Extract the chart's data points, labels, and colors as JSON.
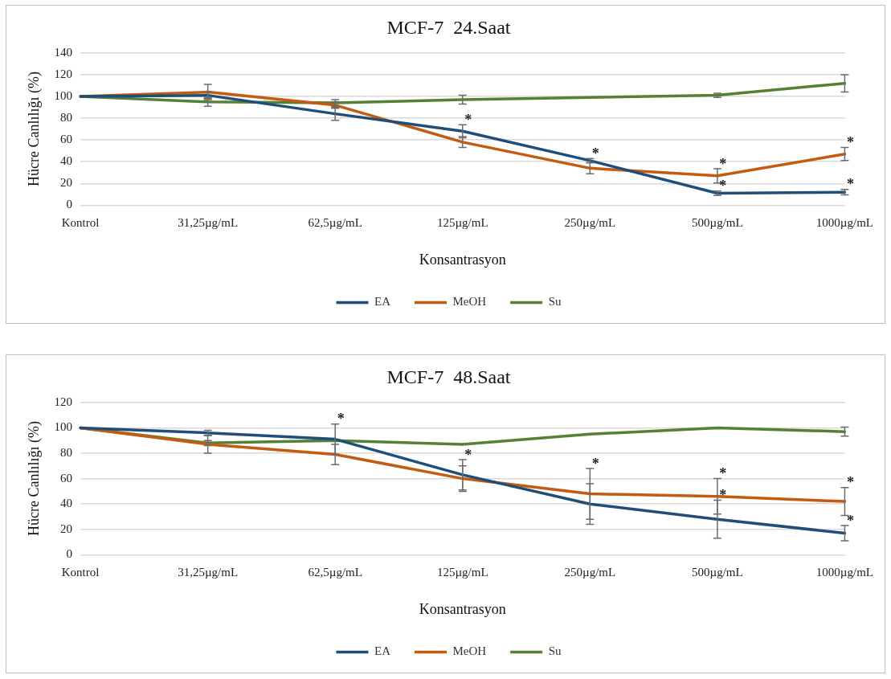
{
  "chart_data": [
    {
      "type": "line",
      "title": "MCF-7  24.Saat",
      "xlabel": "Konsantrasyon",
      "ylabel": "Hücre Canlılığı (%)",
      "categories": [
        "Kontrol",
        "31,25µg/mL",
        "62,5µg/mL",
        "125µg/mL",
        "250µg/mL",
        "500µg/mL",
        "1000µg/mL"
      ],
      "series": [
        {
          "name": "EA",
          "color": "#1f4e79",
          "values": [
            100,
            101,
            84,
            68,
            41,
            11,
            12
          ],
          "errors": [
            null,
            3,
            6,
            6,
            2,
            2,
            2.5
          ]
        },
        {
          "name": "MeOH",
          "color": "#c55a11",
          "values": [
            100,
            104,
            92,
            58,
            34,
            27,
            47
          ],
          "errors": [
            null,
            7,
            3,
            5,
            5,
            6.5,
            6
          ]
        },
        {
          "name": "Su",
          "color": "#548235",
          "values": [
            100,
            95,
            94,
            97,
            99,
            101,
            112
          ],
          "errors": [
            null,
            4,
            3,
            4,
            null,
            2,
            8
          ]
        }
      ],
      "ylim": [
        0,
        140
      ],
      "yticks": [
        0,
        20,
        40,
        60,
        80,
        100,
        120,
        140
      ],
      "grid": "y",
      "legend": "bottom",
      "line_style": "solid",
      "annotations": [
        {
          "text": "*",
          "x": "125µg/mL",
          "y": 68
        },
        {
          "text": "*",
          "x": "250µg/mL",
          "y": 41
        },
        {
          "text": "*",
          "x": "500µg/mL",
          "y": 27
        },
        {
          "text": "*",
          "x": "500µg/mL",
          "y": 11
        },
        {
          "text": "*",
          "x": "1000µg/mL",
          "y": 47
        },
        {
          "text": "*",
          "x": "1000µg/mL",
          "y": 12
        }
      ]
    },
    {
      "type": "line",
      "title": "MCF-7  48.Saat",
      "xlabel": "Konsantrasyon",
      "ylabel": "Hücre Canlılığı (%)",
      "categories": [
        "Kontrol",
        "31,25µg/mL",
        "62,5µg/mL",
        "125µg/mL",
        "250µg/mL",
        "500µg/mL",
        "1000µg/mL"
      ],
      "series": [
        {
          "name": "EA",
          "color": "#1f4e79",
          "values": [
            100,
            96,
            91,
            63,
            40,
            28,
            17
          ],
          "errors": [
            null,
            2,
            12,
            12,
            16,
            15,
            6
          ]
        },
        {
          "name": "MeOH",
          "color": "#c55a11",
          "values": [
            100,
            87,
            79,
            60,
            48,
            46,
            42
          ],
          "errors": [
            null,
            7,
            8,
            10,
            20,
            14,
            11
          ]
        },
        {
          "name": "Su",
          "color": "#548235",
          "values": [
            100,
            88,
            90,
            87,
            95,
            100,
            97
          ],
          "errors": [
            null,
            2,
            null,
            null,
            null,
            null,
            3.5
          ]
        }
      ],
      "ylim": [
        0,
        120
      ],
      "yticks": [
        0,
        20,
        40,
        60,
        80,
        100,
        120
      ],
      "grid": "y",
      "legend": "bottom",
      "line_style": "solid",
      "annotations": [
        {
          "text": "*",
          "x": "62,5µg/mL",
          "y": 91
        },
        {
          "text": "*",
          "x": "125µg/mL",
          "y": 63
        },
        {
          "text": "*",
          "x": "250µg/mL",
          "y": 48
        },
        {
          "text": "*",
          "x": "500µg/mL",
          "y": 46
        },
        {
          "text": "*",
          "x": "500µg/mL",
          "y": 28
        },
        {
          "text": "*",
          "x": "1000µg/mL",
          "y": 42
        },
        {
          "text": "*",
          "x": "1000µg/mL",
          "y": 17
        }
      ]
    }
  ]
}
